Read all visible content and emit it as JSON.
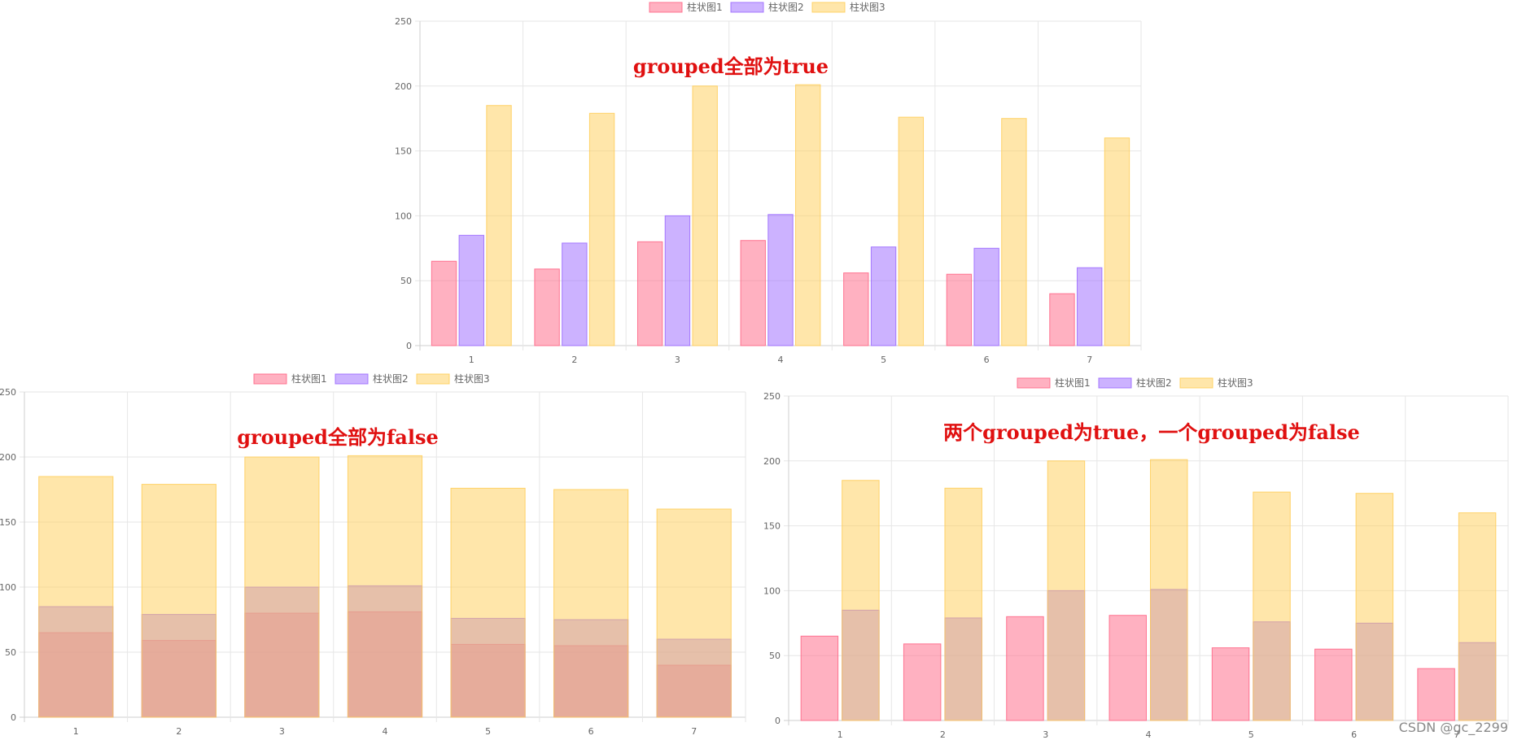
{
  "watermark": "CSDN @gc_2299",
  "colors": {
    "grid": "#e6e6e6",
    "axis": "#cfcfcf",
    "title": "#e01010",
    "series": [
      {
        "fill": "rgba(255,99,132,0.5)",
        "stroke": "rgba(255,99,132,0.85)"
      },
      {
        "fill": "rgba(153,102,255,0.5)",
        "stroke": "rgba(153,102,255,0.85)"
      },
      {
        "fill": "rgba(255,205,86,0.5)",
        "stroke": "rgba(255,205,86,0.85)"
      }
    ]
  },
  "chart_data": [
    {
      "type": "bar",
      "mode": "grouped",
      "title": "grouped全部为true",
      "categories": [
        "1",
        "2",
        "3",
        "4",
        "5",
        "6",
        "7"
      ],
      "ylim": [
        0,
        250
      ],
      "yticks": [
        0,
        50,
        100,
        150,
        200,
        250
      ],
      "grid": true,
      "legend_position": "top",
      "series": [
        {
          "name": "柱状图1",
          "values": [
            65,
            59,
            80,
            81,
            56,
            55,
            40
          ]
        },
        {
          "name": "柱状图2",
          "values": [
            85,
            79,
            100,
            101,
            76,
            75,
            60
          ]
        },
        {
          "name": "柱状图3",
          "values": [
            185,
            179,
            200,
            201,
            176,
            175,
            160
          ]
        }
      ]
    },
    {
      "type": "bar",
      "mode": "overlapped",
      "title": "grouped全部为false",
      "categories": [
        "1",
        "2",
        "3",
        "4",
        "5",
        "6",
        "7"
      ],
      "ylim": [
        0,
        250
      ],
      "yticks": [
        0,
        50,
        100,
        150,
        200,
        250
      ],
      "grid": true,
      "legend_position": "top",
      "series": [
        {
          "name": "柱状图1",
          "values": [
            65,
            59,
            80,
            81,
            56,
            55,
            40
          ]
        },
        {
          "name": "柱状图2",
          "values": [
            85,
            79,
            100,
            101,
            76,
            75,
            60
          ]
        },
        {
          "name": "柱状图3",
          "values": [
            185,
            179,
            200,
            201,
            176,
            175,
            160
          ]
        }
      ]
    },
    {
      "type": "bar",
      "mode": "mixed",
      "title": "两个grouped为true，一个grouped为false",
      "categories": [
        "1",
        "2",
        "3",
        "4",
        "5",
        "6",
        "7"
      ],
      "ylim": [
        0,
        250
      ],
      "yticks": [
        0,
        50,
        100,
        150,
        200,
        250
      ],
      "grid": true,
      "legend_position": "top",
      "series": [
        {
          "name": "柱状图1",
          "values": [
            65,
            59,
            80,
            81,
            56,
            55,
            40
          ]
        },
        {
          "name": "柱状图2",
          "values": [
            85,
            79,
            100,
            101,
            76,
            75,
            60
          ]
        },
        {
          "name": "柱状图3",
          "values": [
            185,
            179,
            200,
            201,
            176,
            175,
            160
          ]
        }
      ]
    }
  ]
}
